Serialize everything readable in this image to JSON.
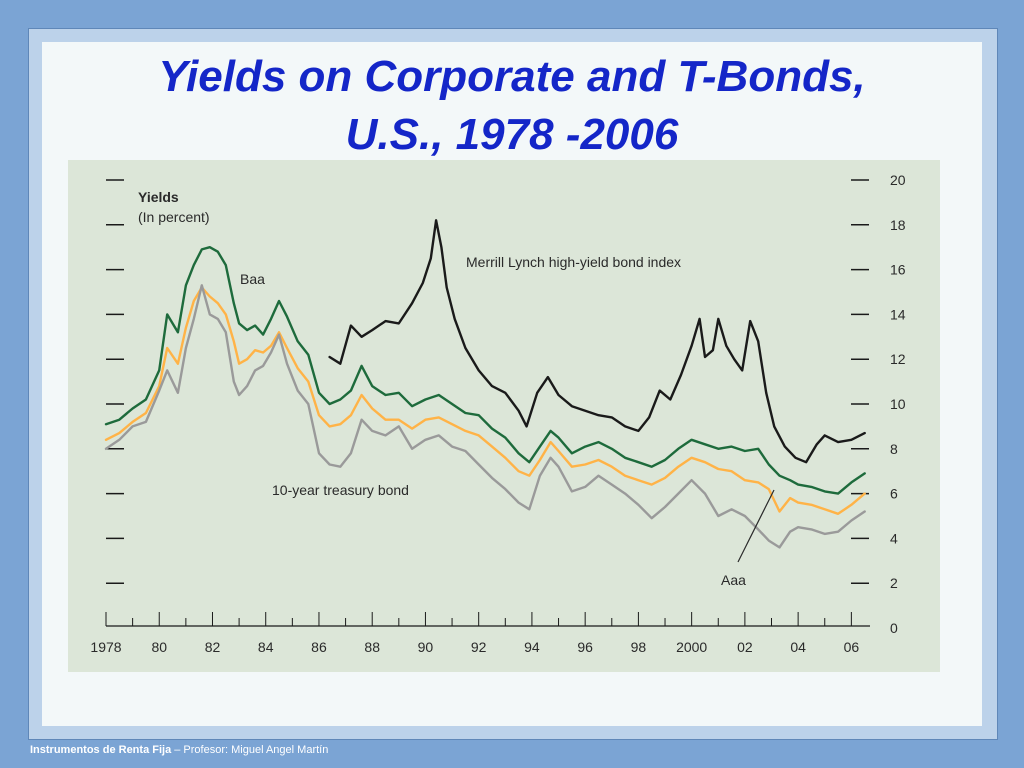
{
  "slide": {
    "title_line1": "Yields on Corporate and T-Bonds,",
    "title_line2": "U.S., 1978 -2006",
    "footer_course": "Instrumentos de Renta Fija",
    "footer_rest": " – Profesor: Miguel Angel Martín",
    "colors": {
      "background": "#7ba4d4",
      "title": "#1426c8",
      "panel": "#dce6d8",
      "baa": "#1e6b3c",
      "aaa": "#ffb347",
      "treasury": "#9a9a9a",
      "high_yield": "#1a1a1a"
    }
  },
  "chart_data": {
    "type": "line",
    "title": "Yields",
    "ylabel": "(In percent)",
    "xlabel": "",
    "xlim": [
      1978,
      2006.7
    ],
    "ylim": [
      0,
      20
    ],
    "x_ticks": [
      1978,
      1980,
      1982,
      1984,
      1986,
      1988,
      1990,
      1992,
      1994,
      1996,
      1998,
      2000,
      2002,
      2004,
      2006
    ],
    "x_tick_labels": [
      "1978",
      "80",
      "82",
      "84",
      "86",
      "88",
      "90",
      "92",
      "94",
      "96",
      "98",
      "2000",
      "02",
      "04",
      "06"
    ],
    "y_ticks": [
      0,
      2,
      4,
      6,
      8,
      10,
      12,
      14,
      16,
      18,
      20
    ],
    "y_tick_labels": [
      "0",
      "2",
      "4",
      "6",
      "8",
      "10",
      "12",
      "14",
      "16",
      "18",
      "20"
    ],
    "annotations": {
      "baa": "Baa",
      "high_yield": "Merrill Lynch high-yield bond index",
      "treasury": "10-year treasury bond",
      "aaa": "Aaa"
    },
    "series": [
      {
        "name": "Baa",
        "color": "#1e6b3c",
        "x": [
          1978,
          1978.5,
          1979,
          1979.5,
          1980,
          1980.3,
          1980.7,
          1981,
          1981.3,
          1981.6,
          1981.9,
          1982.2,
          1982.5,
          1982.8,
          1983,
          1983.3,
          1983.6,
          1983.9,
          1984.2,
          1984.5,
          1984.8,
          1985.2,
          1985.6,
          1986,
          1986.4,
          1986.8,
          1987.2,
          1987.6,
          1988,
          1988.5,
          1989,
          1989.5,
          1990,
          1990.5,
          1991,
          1991.5,
          1992,
          1992.5,
          1993,
          1993.5,
          1993.9,
          1994.3,
          1994.7,
          1995,
          1995.5,
          1996,
          1996.5,
          1997,
          1997.5,
          1998,
          1998.5,
          1999,
          1999.5,
          2000,
          2000.5,
          2001,
          2001.5,
          2002,
          2002.5,
          2002.9,
          2003.3,
          2003.7,
          2004,
          2004.5,
          2005,
          2005.5,
          2006,
          2006.5
        ],
        "y": [
          9.1,
          9.3,
          9.8,
          10.2,
          11.5,
          14.0,
          13.2,
          15.3,
          16.2,
          16.9,
          17.0,
          16.8,
          16.2,
          14.5,
          13.6,
          13.3,
          13.5,
          13.1,
          13.8,
          14.6,
          13.9,
          12.8,
          12.2,
          10.5,
          10.0,
          10.2,
          10.6,
          11.7,
          10.8,
          10.4,
          10.5,
          9.9,
          10.2,
          10.4,
          10.0,
          9.6,
          9.5,
          8.9,
          8.5,
          7.8,
          7.4,
          8.1,
          8.8,
          8.5,
          7.8,
          8.1,
          8.3,
          8.0,
          7.6,
          7.4,
          7.2,
          7.5,
          8.0,
          8.4,
          8.2,
          8.0,
          8.1,
          7.9,
          8.0,
          7.3,
          6.8,
          6.6,
          6.4,
          6.3,
          6.1,
          6.0,
          6.5,
          6.9
        ]
      },
      {
        "name": "Aaa",
        "color": "#ffb347",
        "x": [
          1978,
          1978.5,
          1979,
          1979.5,
          1980,
          1980.3,
          1980.7,
          1981,
          1981.3,
          1981.6,
          1981.9,
          1982.2,
          1982.5,
          1982.8,
          1983,
          1983.3,
          1983.6,
          1983.9,
          1984.2,
          1984.5,
          1984.8,
          1985.2,
          1985.6,
          1986,
          1986.4,
          1986.8,
          1987.2,
          1987.6,
          1988,
          1988.5,
          1989,
          1989.5,
          1990,
          1990.5,
          1991,
          1991.5,
          1992,
          1992.5,
          1993,
          1993.5,
          1993.9,
          1994.3,
          1994.7,
          1995,
          1995.5,
          1996,
          1996.5,
          1997,
          1997.5,
          1998,
          1998.5,
          1999,
          1999.5,
          2000,
          2000.5,
          2001,
          2001.5,
          2002,
          2002.5,
          2002.9,
          2003.3,
          2003.7,
          2004,
          2004.5,
          2005,
          2005.5,
          2006,
          2006.5
        ],
        "y": [
          8.4,
          8.7,
          9.2,
          9.6,
          10.8,
          12.5,
          11.8,
          13.4,
          14.6,
          15.2,
          14.8,
          14.5,
          14.0,
          12.8,
          11.8,
          12.0,
          12.4,
          12.3,
          12.6,
          13.2,
          12.5,
          11.6,
          11.0,
          9.5,
          9.0,
          9.1,
          9.5,
          10.4,
          9.8,
          9.3,
          9.3,
          8.9,
          9.3,
          9.4,
          9.1,
          8.8,
          8.6,
          8.1,
          7.6,
          7.0,
          6.8,
          7.5,
          8.3,
          7.9,
          7.2,
          7.3,
          7.5,
          7.2,
          6.8,
          6.6,
          6.4,
          6.7,
          7.2,
          7.6,
          7.4,
          7.1,
          7.0,
          6.6,
          6.5,
          6.2,
          5.2,
          5.8,
          5.6,
          5.5,
          5.3,
          5.1,
          5.5,
          6.0
        ]
      },
      {
        "name": "10-year treasury bond",
        "color": "#9a9a9a",
        "x": [
          1978,
          1978.5,
          1979,
          1979.5,
          1980,
          1980.3,
          1980.7,
          1981,
          1981.3,
          1981.6,
          1981.9,
          1982.2,
          1982.5,
          1982.8,
          1983,
          1983.3,
          1983.6,
          1983.9,
          1984.2,
          1984.5,
          1984.8,
          1985.2,
          1985.6,
          1986,
          1986.4,
          1986.8,
          1987.2,
          1987.6,
          1988,
          1988.5,
          1989,
          1989.5,
          1990,
          1990.5,
          1991,
          1991.5,
          1992,
          1992.5,
          1993,
          1993.5,
          1993.9,
          1994.3,
          1994.7,
          1995,
          1995.5,
          1996,
          1996.5,
          1997,
          1997.5,
          1998,
          1998.5,
          1999,
          1999.5,
          2000,
          2000.5,
          2001,
          2001.5,
          2002,
          2002.5,
          2002.9,
          2003.3,
          2003.7,
          2004,
          2004.5,
          2005,
          2005.5,
          2006,
          2006.5
        ],
        "y": [
          8.0,
          8.4,
          9.0,
          9.2,
          10.6,
          11.5,
          10.5,
          12.5,
          13.8,
          15.3,
          14.0,
          13.8,
          13.2,
          11.0,
          10.4,
          10.8,
          11.5,
          11.7,
          12.3,
          13.1,
          11.8,
          10.6,
          10.0,
          7.8,
          7.3,
          7.2,
          7.8,
          9.3,
          8.8,
          8.6,
          9.0,
          8.0,
          8.4,
          8.6,
          8.1,
          7.9,
          7.3,
          6.7,
          6.2,
          5.6,
          5.3,
          6.8,
          7.6,
          7.2,
          6.1,
          6.3,
          6.8,
          6.4,
          6.0,
          5.5,
          4.9,
          5.4,
          6.0,
          6.6,
          6.0,
          5.0,
          5.3,
          5.0,
          4.4,
          3.9,
          3.6,
          4.3,
          4.5,
          4.4,
          4.2,
          4.3,
          4.8,
          5.2
        ]
      },
      {
        "name": "Merrill Lynch high-yield bond index",
        "color": "#1a1a1a",
        "x": [
          1986.4,
          1986.8,
          1987.2,
          1987.6,
          1988,
          1988.5,
          1989,
          1989.5,
          1989.9,
          1990.2,
          1990.4,
          1990.6,
          1990.8,
          1991.1,
          1991.5,
          1992,
          1992.5,
          1993,
          1993.5,
          1993.8,
          1994.2,
          1994.6,
          1995,
          1995.5,
          1996,
          1996.5,
          1997,
          1997.5,
          1998,
          1998.4,
          1998.8,
          1999.2,
          1999.6,
          2000,
          2000.3,
          2000.5,
          2000.8,
          2001,
          2001.3,
          2001.6,
          2001.9,
          2002.2,
          2002.5,
          2002.8,
          2003.1,
          2003.5,
          2003.9,
          2004.3,
          2004.7,
          2005,
          2005.5,
          2006,
          2006.5
        ],
        "y": [
          12.1,
          11.8,
          13.5,
          13.0,
          13.3,
          13.7,
          13.6,
          14.5,
          15.4,
          16.5,
          18.2,
          17.0,
          15.2,
          13.8,
          12.5,
          11.5,
          10.8,
          10.5,
          9.7,
          9.0,
          10.5,
          11.2,
          10.4,
          9.9,
          9.7,
          9.5,
          9.4,
          9.0,
          8.8,
          9.4,
          10.6,
          10.2,
          11.3,
          12.6,
          13.8,
          12.1,
          12.4,
          13.8,
          12.6,
          12.0,
          11.5,
          13.7,
          12.8,
          10.5,
          9.0,
          8.1,
          7.6,
          7.4,
          8.2,
          8.6,
          8.3,
          8.4,
          8.7
        ]
      }
    ]
  }
}
